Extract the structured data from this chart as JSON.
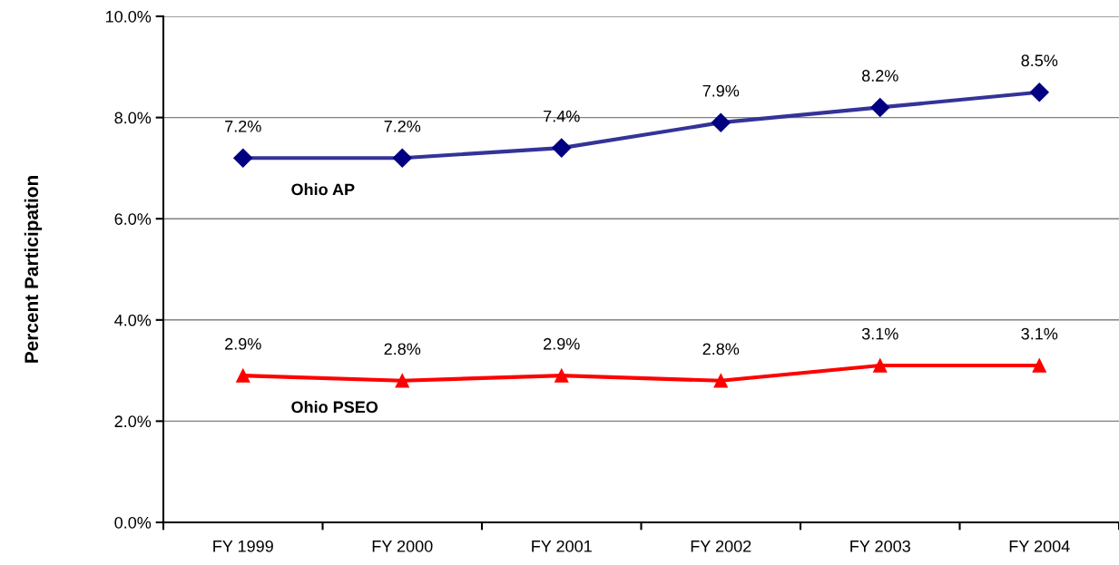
{
  "chart_data": {
    "type": "line",
    "ylabel": "Percent Participation",
    "categories": [
      "FY 1999",
      "FY 2000",
      "FY 2001",
      "FY 2002",
      "FY 2003",
      "FY 2004"
    ],
    "series": [
      {
        "name": "Ohio AP",
        "color": "#333399",
        "marker": "diamond",
        "values": [
          7.2,
          7.2,
          7.4,
          7.9,
          8.2,
          8.5
        ],
        "value_labels": [
          "7.2%",
          "7.2%",
          "7.4%",
          "7.9%",
          "8.2%",
          "8.5%"
        ]
      },
      {
        "name": "Ohio PSEO",
        "color": "#ff0000",
        "marker": "triangle",
        "values": [
          2.9,
          2.8,
          2.9,
          2.8,
          3.1,
          3.1
        ],
        "value_labels": [
          "2.9%",
          "2.8%",
          "2.9%",
          "2.8%",
          "3.1%",
          "3.1%"
        ]
      }
    ],
    "ylim": [
      0,
      10
    ],
    "yticks": [
      {
        "value": 0,
        "label": "0.0%"
      },
      {
        "value": 2,
        "label": "2.0%"
      },
      {
        "value": 4,
        "label": "4.0%"
      },
      {
        "value": 6,
        "label": "6.0%"
      },
      {
        "value": 8,
        "label": "8.0%"
      },
      {
        "value": 10,
        "label": "10.0%"
      }
    ],
    "grid": "y",
    "legend": false,
    "line_style": "solid"
  }
}
